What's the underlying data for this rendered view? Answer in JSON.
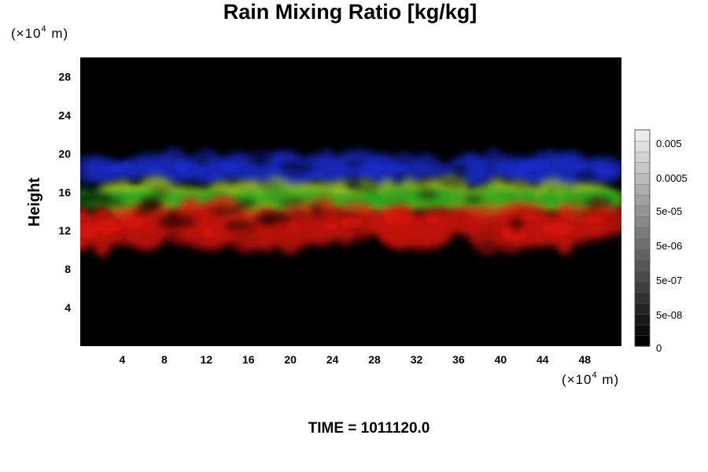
{
  "chart_data": {
    "type": "heatmap",
    "title": "Rain Mixing Ratio [kg/kg]",
    "ylabel": "Height",
    "xlabel": "",
    "x_unit": "(×10",
    "x_unit_exp": "4",
    "x_unit_suffix": " m)",
    "y_unit": "(×10",
    "y_unit_exp": "4",
    "y_unit_suffix": " m)",
    "xlim": [
      0,
      51.5
    ],
    "ylim": [
      0,
      30
    ],
    "x_ticks": [
      4,
      8,
      12,
      16,
      20,
      24,
      28,
      32,
      36,
      40,
      44,
      48
    ],
    "y_ticks": [
      4,
      8,
      12,
      16,
      20,
      24,
      28
    ],
    "background_color": "#000000",
    "bands": [
      {
        "color": "#1e2fd8",
        "y_range": [
          16.6,
          20.0
        ],
        "x_range": [
          0.5,
          50.5
        ]
      },
      {
        "color": "#b2d82a",
        "y_range": [
          13.6,
          17.2
        ],
        "x_range": [
          3.0,
          50.5
        ]
      },
      {
        "color": "#2aa21e",
        "y_range": [
          14.4,
          16.2
        ],
        "x_range": [
          0.0,
          51.5
        ]
      },
      {
        "color": "#e2150d",
        "y_range": [
          10.2,
          14.8
        ],
        "x_range": [
          0.0,
          50.5
        ]
      }
    ],
    "colorbar": {
      "labels": [
        "0.005",
        "0.0005",
        "5e-05",
        "5e-06",
        "5e-07",
        "5e-08",
        "0"
      ],
      "n_levels": 20
    }
  },
  "footer": {
    "time_label": "TIME = 1011120.0"
  }
}
